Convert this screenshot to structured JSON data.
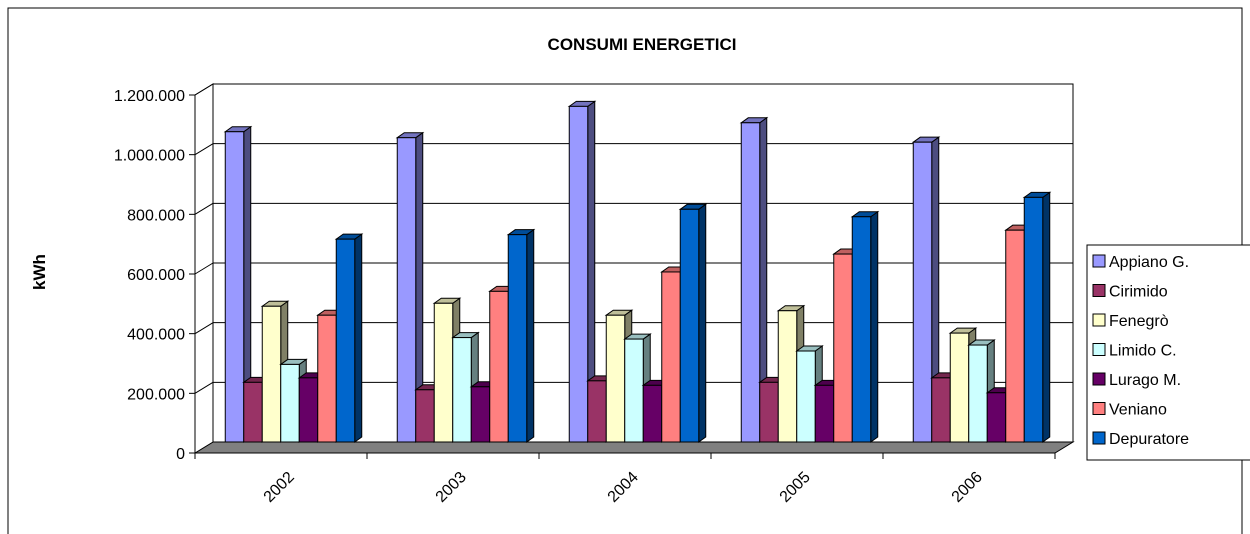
{
  "chart_data": {
    "type": "bar",
    "title": "CONSUMI ENERGETICI",
    "xlabel": "",
    "ylabel": "kWh",
    "ylim": [
      0,
      1200000
    ],
    "yticks": [
      "0",
      "200.000",
      "400.000",
      "600.000",
      "800.000",
      "1.000.000",
      "1.200.000"
    ],
    "grid": true,
    "legend_position": "right",
    "categories": [
      "2002",
      "2003",
      "2004",
      "2005",
      "2006"
    ],
    "series": [
      {
        "name": "Appiano G.",
        "color": "#9999ff",
        "values": [
          1040000,
          1020000,
          1125000,
          1070000,
          1005000
        ]
      },
      {
        "name": "Cirimido",
        "color": "#993366",
        "values": [
          200000,
          175000,
          205000,
          200000,
          215000
        ]
      },
      {
        "name": "Fenegrò",
        "color": "#ffffcc",
        "values": [
          455000,
          465000,
          425000,
          440000,
          365000
        ]
      },
      {
        "name": "Limido C.",
        "color": "#ccffff",
        "values": [
          260000,
          350000,
          345000,
          305000,
          325000
        ]
      },
      {
        "name": "Lurago M.",
        "color": "#660066",
        "values": [
          215000,
          185000,
          190000,
          190000,
          165000
        ]
      },
      {
        "name": "Veniano",
        "color": "#ff8080",
        "values": [
          425000,
          505000,
          570000,
          630000,
          710000
        ]
      },
      {
        "name": "Depuratore",
        "color": "#0066cc",
        "values": [
          680000,
          695000,
          780000,
          755000,
          820000
        ]
      }
    ]
  }
}
